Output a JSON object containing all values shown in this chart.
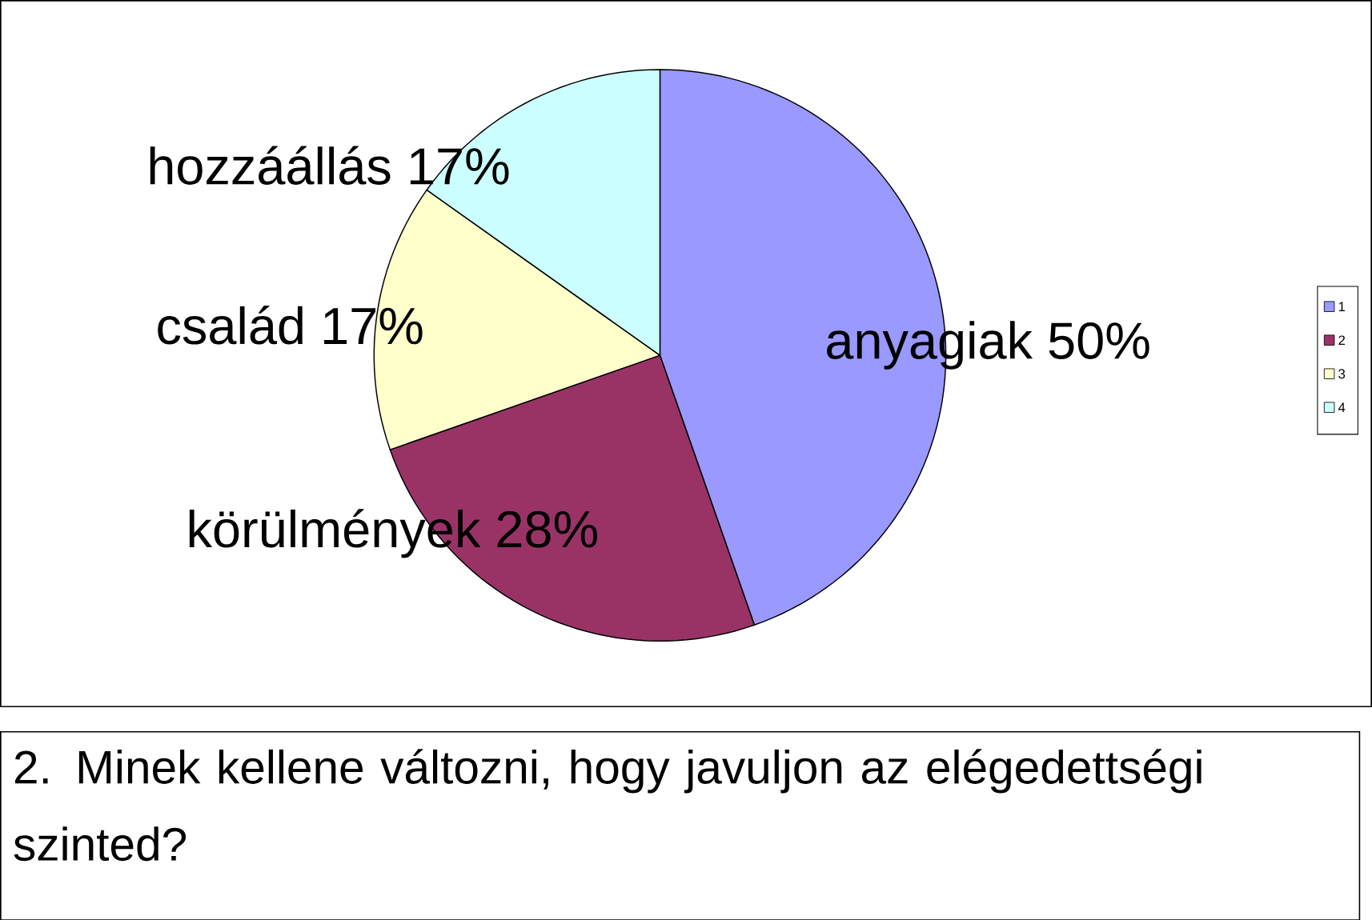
{
  "chart_data": {
    "type": "pie",
    "title": "2. Minek kellene változni, hogy javuljon az elégedettségi szinted?",
    "categories": [
      "anyagiak",
      "körülmények",
      "család",
      "hozzáállás"
    ],
    "values": [
      50,
      28,
      17,
      17
    ],
    "value_labels": [
      "50%",
      "28%",
      "17%",
      "17%"
    ],
    "colors": [
      "#9999ff",
      "#993366",
      "#ffffcc",
      "#ccffff"
    ],
    "annotations": [
      "1",
      "2",
      "3",
      "4"
    ]
  }
}
